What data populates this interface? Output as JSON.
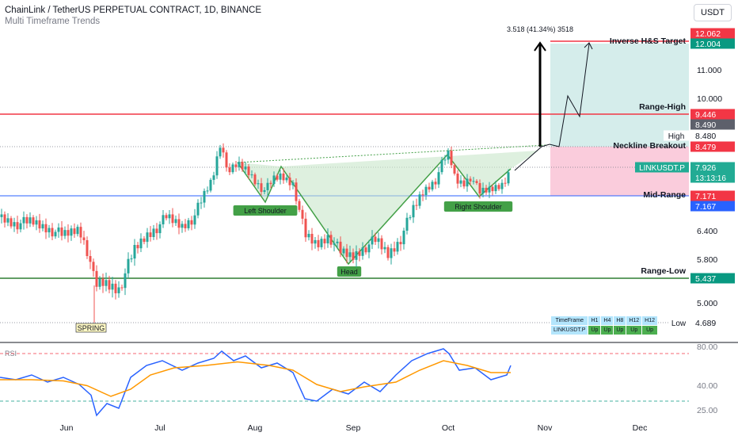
{
  "header": {
    "title": "ChainLink / TetherUS PERPETUAL CONTRACT, 1D, BINANCE",
    "subtitle": "Multi Timeframe Trends",
    "currency": "USDT"
  },
  "colors": {
    "up": "#26a69a",
    "down": "#ef5350",
    "red_line": "#f23645",
    "green_line": "#4caf50",
    "blue_line": "#2962ff",
    "rsi": "#2962ff",
    "rsi_ma": "#ff9800"
  },
  "chart_data": {
    "type": "candlestick",
    "x_ticks": [
      "Jun",
      "Jul",
      "Aug",
      "Sep",
      "Oct",
      "Nov",
      "Dec"
    ],
    "price_ticks": [
      "11.000",
      "10.000",
      "6.400",
      "5.800",
      "5.000"
    ],
    "price_labels": [
      {
        "text": "12.062",
        "kind": "red"
      },
      {
        "text": "12.004",
        "kind": "green"
      },
      {
        "text": "9.446",
        "kind": "red"
      },
      {
        "text": "8.490",
        "kind": "gray"
      },
      {
        "text": "8.480",
        "kind": "plain",
        "prefix": "High"
      },
      {
        "text": "8.479",
        "kind": "red"
      },
      {
        "text": "7.926",
        "kind": "teal",
        "prefix": "LINKUSDT.P",
        "extra": "13:13:16"
      },
      {
        "text": "7.171",
        "kind": "red"
      },
      {
        "text": "7.167",
        "kind": "blue"
      },
      {
        "text": "5.437",
        "kind": "green"
      },
      {
        "text": "4.689",
        "kind": "plain",
        "prefix": "Low"
      }
    ],
    "levels": [
      {
        "name": "Inverse H&S Target",
        "value": 12.062
      },
      {
        "name": "Range-High",
        "value": 9.446
      },
      {
        "name": "Neckline Breakout",
        "value": 8.479
      },
      {
        "name": "Mid-Range",
        "value": 7.171
      },
      {
        "name": "Range-Low",
        "value": 5.437
      }
    ],
    "measure_label": "3.518 (41.34%) 3518",
    "pattern_labels": [
      "Left Shoulder",
      "Head",
      "Right Shoulder"
    ],
    "spring_label": "SPRING",
    "rsi": {
      "label": "RSI",
      "ticks": [
        "80.00",
        "40.00",
        "25.00"
      ],
      "upper": 70,
      "lower": 30
    }
  },
  "mtf_table": {
    "headers": [
      "TimeFrame",
      "H1",
      "H4",
      "H8",
      "H12",
      "H12"
    ],
    "row": [
      "LINKUSDT.P",
      "Up",
      "Up",
      "Up",
      "Up",
      "Up"
    ]
  }
}
